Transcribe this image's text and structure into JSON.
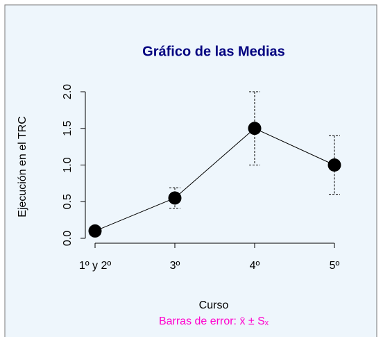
{
  "chart_data": {
    "type": "line",
    "title": "Gráfico de las Medias",
    "xlabel": "Curso",
    "ylabel": "Ejecución en el TRC",
    "subtitle": "Barras de error: x̄ ± Sₓ",
    "categories": [
      "1º y 2º",
      "3º",
      "4º",
      "5º"
    ],
    "values": [
      0.1,
      0.55,
      1.5,
      1.0
    ],
    "errors": [
      0.05,
      0.14,
      0.5,
      0.4
    ],
    "color": "#000000",
    "ylim": [
      -0.08,
      2.08
    ],
    "yticks": [
      {
        "value": 0,
        "label": "0.0"
      },
      0.5,
      {
        "value": 1,
        "label": "1.0"
      },
      1.5,
      {
        "value": 2,
        "label": "2.0"
      }
    ]
  }
}
